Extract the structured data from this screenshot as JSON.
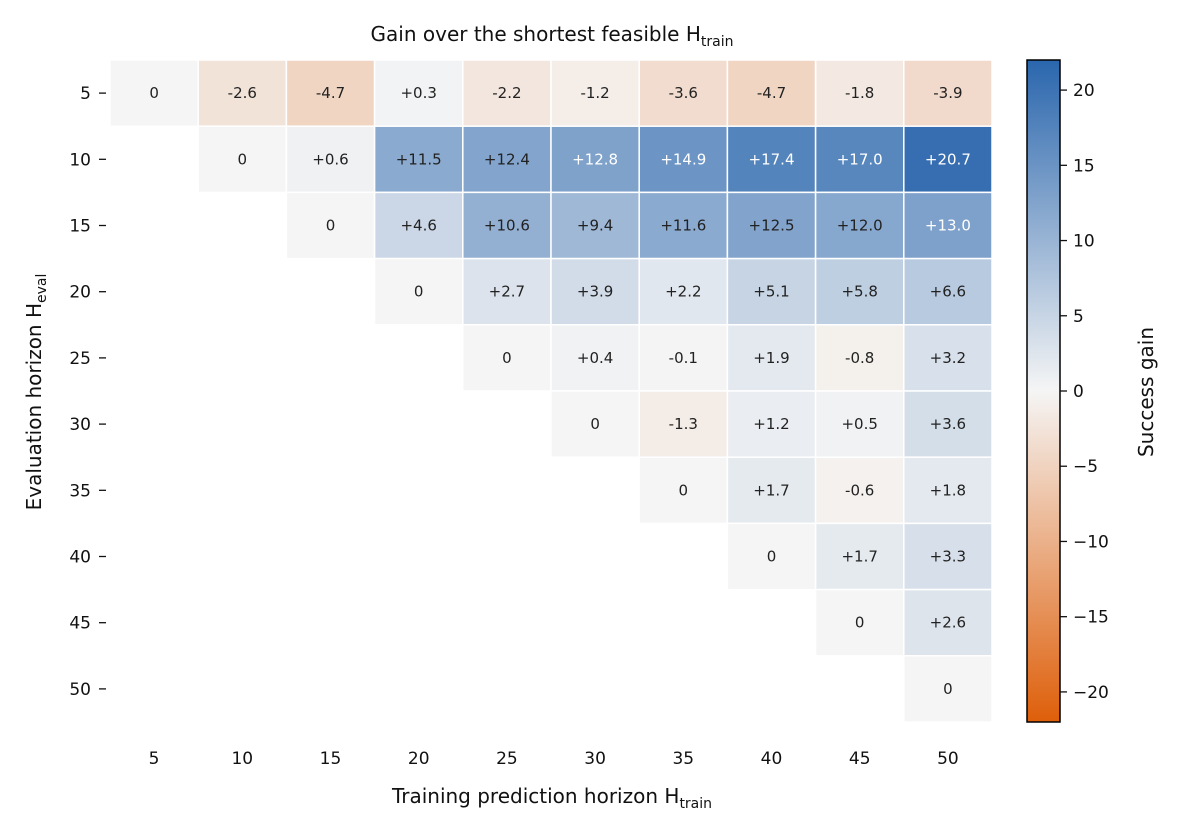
{
  "chart_data": {
    "type": "heatmap",
    "title": "Gain over the shortest feasible H",
    "title_sub": "train",
    "xlabel": "Training prediction horizon H",
    "xlabel_sub": "train",
    "ylabel": "Evaluation horizon H",
    "ylabel_sub": "eval",
    "x": [
      5,
      10,
      15,
      20,
      25,
      30,
      35,
      40,
      45,
      50
    ],
    "y": [
      5,
      10,
      15,
      20,
      25,
      30,
      35,
      40,
      45,
      50
    ],
    "cells": [
      [
        "0",
        "-2.6",
        "-4.7",
        "+0.3",
        "-2.2",
        "-1.2",
        "-3.6",
        "-4.7",
        "-1.8",
        "-3.9"
      ],
      [
        null,
        "0",
        "+0.6",
        "+11.5",
        "+12.4",
        "+12.8",
        "+14.9",
        "+17.4",
        "+17.0",
        "+20.7"
      ],
      [
        null,
        null,
        "0",
        "+4.6",
        "+10.6",
        "+9.4",
        "+11.6",
        "+12.5",
        "+12.0",
        "+13.0"
      ],
      [
        null,
        null,
        null,
        "0",
        "+2.7",
        "+3.9",
        "+2.2",
        "+5.1",
        "+5.8",
        "+6.6"
      ],
      [
        null,
        null,
        null,
        null,
        "0",
        "+0.4",
        "-0.1",
        "+1.9",
        "-0.8",
        "+3.2"
      ],
      [
        null,
        null,
        null,
        null,
        null,
        "0",
        "-1.3",
        "+1.2",
        "+0.5",
        "+3.6"
      ],
      [
        null,
        null,
        null,
        null,
        null,
        null,
        "0",
        "+1.7",
        "-0.6",
        "+1.8"
      ],
      [
        null,
        null,
        null,
        null,
        null,
        null,
        null,
        "0",
        "+1.7",
        "+3.3"
      ],
      [
        null,
        null,
        null,
        null,
        null,
        null,
        null,
        null,
        "0",
        "+2.6"
      ],
      [
        null,
        null,
        null,
        null,
        null,
        null,
        null,
        null,
        null,
        "0"
      ]
    ],
    "colorbar": {
      "label": "Success gain",
      "range": [
        -22,
        22
      ],
      "ticks": [
        20,
        15,
        10,
        5,
        0,
        -5,
        -10,
        -15,
        -20
      ],
      "tick_labels": [
        "20",
        "15",
        "10",
        "5",
        "0",
        "−5",
        "−10",
        "−15",
        "−20"
      ],
      "colors": {
        "negative_end": "#de5f0a",
        "neutral": "#f5f5f5",
        "positive_end": "#2a66ad"
      }
    },
    "grid": false,
    "legend": "colorbar-right"
  }
}
